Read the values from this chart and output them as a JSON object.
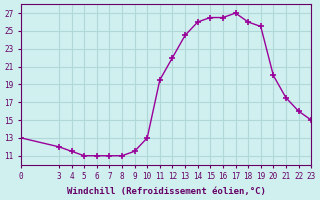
{
  "x": [
    0,
    3,
    4,
    5,
    6,
    7,
    8,
    9,
    10,
    11,
    12,
    13,
    14,
    15,
    16,
    17,
    18,
    19,
    20,
    21,
    22,
    23
  ],
  "y": [
    13,
    12,
    11.5,
    11,
    11,
    11,
    11,
    11.5,
    13,
    19.5,
    22,
    24.5,
    26,
    26.5,
    26.5,
    27,
    26,
    25.5,
    20,
    17.5,
    16,
    15
  ],
  "line_color": "#990099",
  "marker": "+",
  "marker_size": 5,
  "bg_color": "#d0f0f0",
  "grid_color": "#b0d8d8",
  "xlabel": "Windchill (Refroidissement éolien,°C)",
  "ylim": [
    10,
    28
  ],
  "xlim": [
    0,
    23
  ],
  "yticks": [
    11,
    13,
    15,
    17,
    19,
    21,
    23,
    25,
    27
  ],
  "xticks": [
    0,
    3,
    4,
    5,
    6,
    7,
    8,
    9,
    10,
    11,
    12,
    13,
    14,
    15,
    16,
    17,
    18,
    19,
    20,
    21,
    22,
    23
  ],
  "tick_color": "#660066",
  "label_color": "#660066"
}
